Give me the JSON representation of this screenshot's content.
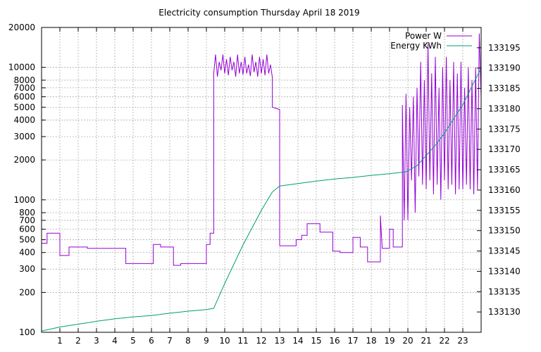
{
  "chart_data": {
    "type": "line",
    "title": "Electricity consumption Thursday April 18 2019",
    "x": {
      "label": "",
      "range": [
        0,
        24
      ],
      "ticks": [
        1,
        2,
        3,
        4,
        5,
        6,
        7,
        8,
        9,
        10,
        11,
        12,
        13,
        14,
        15,
        16,
        17,
        18,
        19,
        20,
        21,
        22,
        23
      ]
    },
    "y_left": {
      "label": "",
      "scale": "log",
      "range": [
        100,
        20000
      ],
      "ticks": [
        100,
        200,
        300,
        400,
        500,
        600,
        700,
        800,
        1000,
        2000,
        3000,
        4000,
        5000,
        6000,
        7000,
        8000,
        10000,
        20000
      ]
    },
    "y_right": {
      "label": "",
      "range": [
        133125,
        133200
      ],
      "ticks": [
        133130,
        133135,
        133140,
        133145,
        133150,
        133155,
        133160,
        133165,
        133170,
        133175,
        133180,
        133185,
        133190,
        133195
      ]
    },
    "legend_position": "top-right",
    "grid": true,
    "series": [
      {
        "name": "Power W",
        "axis": "left",
        "color": "#9400d3",
        "points": [
          [
            0.0,
            470
          ],
          [
            0.3,
            470
          ],
          [
            0.3,
            560
          ],
          [
            1.0,
            560
          ],
          [
            1.0,
            380
          ],
          [
            1.5,
            380
          ],
          [
            1.5,
            440
          ],
          [
            2.5,
            440
          ],
          [
            2.5,
            430
          ],
          [
            4.6,
            430
          ],
          [
            4.6,
            330
          ],
          [
            6.1,
            330
          ],
          [
            6.1,
            460
          ],
          [
            6.5,
            460
          ],
          [
            6.5,
            440
          ],
          [
            7.2,
            440
          ],
          [
            7.2,
            320
          ],
          [
            7.6,
            320
          ],
          [
            7.6,
            330
          ],
          [
            9.0,
            330
          ],
          [
            9.0,
            460
          ],
          [
            9.2,
            460
          ],
          [
            9.2,
            560
          ],
          [
            9.4,
            560
          ],
          [
            9.4,
            9000
          ],
          [
            9.5,
            12500
          ],
          [
            9.6,
            8500
          ],
          [
            9.7,
            11000
          ],
          [
            9.8,
            9500
          ],
          [
            9.9,
            12500
          ],
          [
            10.0,
            9000
          ],
          [
            10.1,
            11500
          ],
          [
            10.2,
            8700
          ],
          [
            10.3,
            12000
          ],
          [
            10.4,
            9500
          ],
          [
            10.5,
            11000
          ],
          [
            10.6,
            8500
          ],
          [
            10.7,
            12500
          ],
          [
            10.8,
            9000
          ],
          [
            10.9,
            11000
          ],
          [
            11.0,
            8800
          ],
          [
            11.1,
            12000
          ],
          [
            11.2,
            9000
          ],
          [
            11.3,
            10500
          ],
          [
            11.4,
            8600
          ],
          [
            11.5,
            12500
          ],
          [
            11.6,
            9200
          ],
          [
            11.7,
            11000
          ],
          [
            11.8,
            8500
          ],
          [
            11.9,
            12000
          ],
          [
            12.0,
            9000
          ],
          [
            12.1,
            11500
          ],
          [
            12.2,
            8700
          ],
          [
            12.3,
            12500
          ],
          [
            12.4,
            9000
          ],
          [
            12.5,
            10500
          ],
          [
            12.6,
            8400
          ],
          [
            12.6,
            5000
          ],
          [
            12.8,
            4900
          ],
          [
            13.0,
            4800
          ],
          [
            13.0,
            450
          ],
          [
            13.9,
            450
          ],
          [
            13.9,
            500
          ],
          [
            14.2,
            500
          ],
          [
            14.2,
            540
          ],
          [
            14.5,
            540
          ],
          [
            14.5,
            660
          ],
          [
            15.2,
            660
          ],
          [
            15.2,
            570
          ],
          [
            15.9,
            570
          ],
          [
            15.9,
            410
          ],
          [
            16.3,
            410
          ],
          [
            16.3,
            400
          ],
          [
            17.0,
            400
          ],
          [
            17.0,
            520
          ],
          [
            17.4,
            520
          ],
          [
            17.4,
            440
          ],
          [
            17.8,
            440
          ],
          [
            17.8,
            340
          ],
          [
            18.5,
            340
          ],
          [
            18.5,
            760
          ],
          [
            18.6,
            430
          ],
          [
            19.0,
            430
          ],
          [
            19.0,
            600
          ],
          [
            19.2,
            600
          ],
          [
            19.2,
            440
          ],
          [
            19.7,
            440
          ],
          [
            19.7,
            5200
          ],
          [
            19.8,
            700
          ],
          [
            19.9,
            6300
          ],
          [
            20.0,
            700
          ],
          [
            20.1,
            5000
          ],
          [
            20.2,
            1400
          ],
          [
            20.3,
            6000
          ],
          [
            20.4,
            800
          ],
          [
            20.5,
            7000
          ],
          [
            20.6,
            1500
          ],
          [
            20.7,
            11000
          ],
          [
            20.8,
            1300
          ],
          [
            20.9,
            8000
          ],
          [
            21.0,
            1200
          ],
          [
            21.1,
            15000
          ],
          [
            21.2,
            1400
          ],
          [
            21.3,
            9000
          ],
          [
            21.4,
            1100
          ],
          [
            21.5,
            12000
          ],
          [
            21.6,
            1300
          ],
          [
            21.7,
            7000
          ],
          [
            21.8,
            1000
          ],
          [
            21.9,
            10000
          ],
          [
            22.0,
            1400
          ],
          [
            22.1,
            12000
          ],
          [
            22.2,
            1200
          ],
          [
            22.3,
            8000
          ],
          [
            22.4,
            1300
          ],
          [
            22.5,
            11000
          ],
          [
            22.6,
            1100
          ],
          [
            22.7,
            9000
          ],
          [
            22.8,
            1200
          ],
          [
            22.9,
            11000
          ],
          [
            23.0,
            1200
          ],
          [
            23.1,
            7000
          ],
          [
            23.2,
            1300
          ],
          [
            23.3,
            10000
          ],
          [
            23.4,
            1200
          ],
          [
            23.5,
            8000
          ],
          [
            23.6,
            1100
          ],
          [
            23.7,
            10000
          ],
          [
            23.8,
            1200
          ],
          [
            23.9,
            18000
          ],
          [
            24.0,
            6000
          ]
        ]
      },
      {
        "name": "Energy KWh",
        "axis": "right",
        "color": "#009e73",
        "points": [
          [
            0.0,
            133125.3
          ],
          [
            1.0,
            133126.3
          ],
          [
            2.0,
            133127.0
          ],
          [
            3.0,
            133127.7
          ],
          [
            4.0,
            133128.3
          ],
          [
            5.0,
            133128.8
          ],
          [
            6.0,
            133129.1
          ],
          [
            7.0,
            133129.7
          ],
          [
            8.0,
            133130.2
          ],
          [
            9.0,
            133130.6
          ],
          [
            9.4,
            133130.9
          ],
          [
            10.0,
            133137.0
          ],
          [
            11.0,
            133146.5
          ],
          [
            12.0,
            133155.0
          ],
          [
            12.6,
            133159.5
          ],
          [
            13.0,
            133161.0
          ],
          [
            14.0,
            133161.6
          ],
          [
            15.0,
            133162.2
          ],
          [
            16.0,
            133162.7
          ],
          [
            17.0,
            133163.1
          ],
          [
            18.0,
            133163.6
          ],
          [
            19.0,
            133164.0
          ],
          [
            19.9,
            133164.5
          ],
          [
            20.5,
            133166.0
          ],
          [
            21.0,
            133168.5
          ],
          [
            21.5,
            133171.0
          ],
          [
            22.0,
            133174.0
          ],
          [
            22.5,
            133177.5
          ],
          [
            23.0,
            133181.0
          ],
          [
            23.5,
            133185.5
          ],
          [
            24.0,
            133190.0
          ]
        ]
      }
    ]
  }
}
